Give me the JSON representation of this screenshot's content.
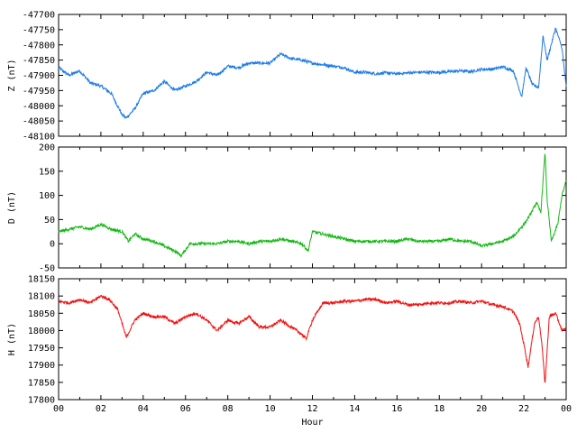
{
  "chart_data": [
    {
      "type": "line",
      "ylabel": "Z (nT)",
      "ylim": [
        -48100,
        -47700
      ],
      "yticks": [
        -47700,
        -47750,
        -47800,
        -47850,
        -47900,
        -47950,
        -48000,
        -48050,
        -48100
      ],
      "xlim": [
        0,
        24
      ],
      "color": "#1e7be6",
      "x": [
        0,
        0.5,
        1,
        1.5,
        2,
        2.5,
        3,
        3.2,
        3.6,
        4,
        4.5,
        5,
        5.5,
        6,
        6.5,
        7,
        7.5,
        8,
        8.5,
        9,
        9.5,
        10,
        10.5,
        11,
        11.5,
        12,
        12.5,
        13,
        13.5,
        14,
        14.5,
        15,
        15.5,
        16,
        16.5,
        17,
        17.5,
        18,
        18.5,
        19,
        19.5,
        20,
        20.5,
        21,
        21.5,
        21.9,
        22.1,
        22.4,
        22.7,
        22.9,
        23.1,
        23.5,
        23.8,
        24
      ],
      "values": [
        -47875,
        -47900,
        -47885,
        -47925,
        -47935,
        -47960,
        -48030,
        -48040,
        -48010,
        -47960,
        -47950,
        -47920,
        -47950,
        -47935,
        -47920,
        -47890,
        -47900,
        -47870,
        -47875,
        -47860,
        -47860,
        -47860,
        -47830,
        -47845,
        -47850,
        -47860,
        -47865,
        -47870,
        -47875,
        -47890,
        -47890,
        -47895,
        -47892,
        -47895,
        -47892,
        -47890,
        -47890,
        -47890,
        -47888,
        -47885,
        -47888,
        -47880,
        -47880,
        -47872,
        -47885,
        -47970,
        -47875,
        -47930,
        -47940,
        -47770,
        -47850,
        -47745,
        -47810,
        -47940
      ]
    },
    {
      "type": "line",
      "ylabel": "D (nT)",
      "ylim": [
        -50,
        200
      ],
      "yticks": [
        200,
        150,
        100,
        50,
        0,
        -50
      ],
      "xlim": [
        0,
        24
      ],
      "color": "#16b816",
      "x": [
        0,
        0.5,
        1,
        1.5,
        2,
        2.5,
        3,
        3.3,
        3.6,
        4,
        4.5,
        5,
        5.5,
        5.8,
        6.2,
        6.5,
        7,
        7.5,
        8,
        8.5,
        9,
        9.5,
        10,
        10.5,
        11,
        11.5,
        11.8,
        12,
        12.5,
        13,
        13.5,
        14,
        14.5,
        15,
        15.5,
        16,
        16.5,
        17,
        17.5,
        18,
        18.5,
        19,
        19.5,
        20,
        20.5,
        21,
        21.5,
        22,
        22.3,
        22.6,
        22.8,
        23,
        23.1,
        23.3,
        23.6,
        23.8,
        24
      ],
      "values": [
        25,
        30,
        35,
        30,
        40,
        30,
        25,
        5,
        20,
        10,
        5,
        -5,
        -15,
        -25,
        0,
        0,
        0,
        0,
        5,
        5,
        0,
        5,
        5,
        10,
        5,
        0,
        -15,
        25,
        20,
        15,
        10,
        5,
        5,
        5,
        5,
        5,
        10,
        5,
        5,
        5,
        10,
        5,
        5,
        -5,
        0,
        5,
        15,
        40,
        60,
        85,
        65,
        190,
        90,
        5,
        40,
        100,
        130
      ]
    },
    {
      "type": "line",
      "ylabel": "H (nT)",
      "xlabel": "Hour",
      "ylim": [
        17800,
        18150
      ],
      "yticks": [
        18150,
        18100,
        18050,
        18000,
        17950,
        17900,
        17850,
        17800
      ],
      "xlim": [
        0,
        24
      ],
      "xticks": [
        "00",
        "02",
        "04",
        "06",
        "08",
        "10",
        "12",
        "14",
        "16",
        "18",
        "20",
        "22",
        "00"
      ],
      "color": "#f01010",
      "x": [
        0,
        0.5,
        1,
        1.5,
        2,
        2.4,
        2.8,
        3.2,
        3.6,
        4,
        4.5,
        5,
        5.5,
        6,
        6.5,
        7,
        7.5,
        8,
        8.5,
        9,
        9.5,
        10,
        10.5,
        11,
        11.5,
        11.7,
        12,
        12.5,
        13,
        13.5,
        14,
        14.5,
        15,
        15.5,
        16,
        16.5,
        17,
        17.5,
        18,
        18.5,
        19,
        19.5,
        20,
        20.5,
        21,
        21.5,
        21.8,
        22,
        22.2,
        22.5,
        22.7,
        22.85,
        23,
        23.2,
        23.5,
        23.8,
        24
      ],
      "values": [
        18085,
        18080,
        18090,
        18080,
        18100,
        18090,
        18060,
        17980,
        18030,
        18050,
        18040,
        18040,
        18020,
        18040,
        18050,
        18030,
        18000,
        18030,
        18020,
        18040,
        18010,
        18010,
        18030,
        18010,
        17990,
        17975,
        18030,
        18080,
        18080,
        18085,
        18085,
        18090,
        18090,
        18080,
        18085,
        18075,
        18075,
        18080,
        18080,
        18080,
        18085,
        18080,
        18085,
        18075,
        18070,
        18055,
        18020,
        17960,
        17895,
        18020,
        18040,
        17960,
        17845,
        18040,
        18050,
        18000,
        18005
      ]
    }
  ]
}
